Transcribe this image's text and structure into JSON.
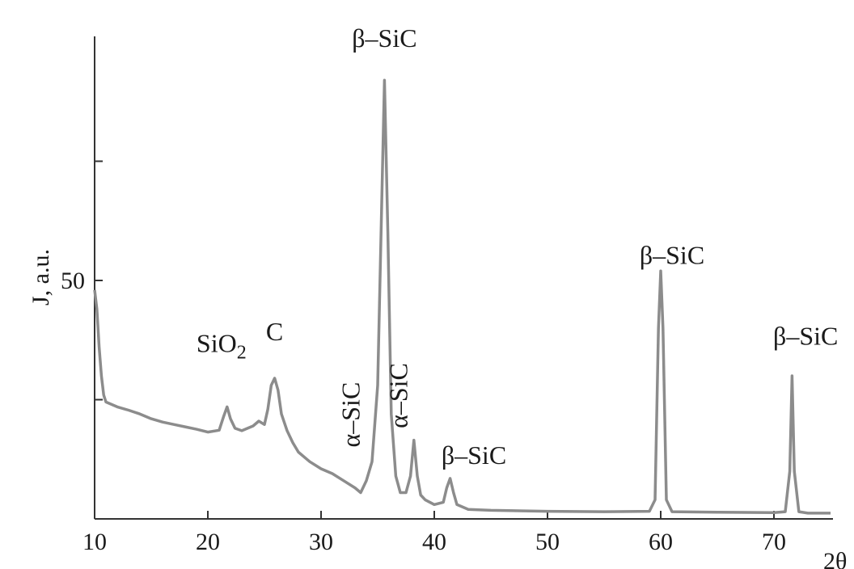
{
  "chart_data": {
    "type": "line",
    "title": "",
    "xlabel": "2θ",
    "ylabel": "J, a.u.",
    "xlim": [
      10,
      75
    ],
    "ylim": [
      0,
      100
    ],
    "x_ticks": [
      10,
      20,
      30,
      40,
      50,
      60,
      70
    ],
    "y_tick_labels": [
      {
        "value": 50,
        "label": "50"
      }
    ],
    "y_minor_ticks": [
      25,
      75
    ],
    "grid": false,
    "line_color": "#8c8c8c",
    "series": [
      {
        "x": [
          10.0,
          10.2,
          10.4,
          10.6,
          10.8,
          11.0,
          11.5,
          12.0,
          13.0,
          14.0,
          15.0,
          16.0,
          17.0,
          18.0,
          19.0,
          20.0,
          21.0,
          21.4,
          21.7,
          22.0,
          22.4,
          23.0,
          24.0,
          24.5,
          25.0,
          25.3,
          25.6,
          25.9,
          26.2,
          26.5,
          27.0,
          27.5,
          28.0,
          29.0,
          30.0,
          31.0,
          32.0,
          33.0,
          33.5,
          34.0,
          34.5,
          35.0,
          35.3,
          35.6,
          35.9,
          36.2,
          36.6,
          37.0,
          37.5,
          37.9,
          38.2,
          38.5,
          38.8,
          39.2,
          40.0,
          40.8,
          41.1,
          41.4,
          41.7,
          42.0,
          43.0,
          45.0,
          50.0,
          55.0,
          59.0,
          59.5,
          59.8,
          60.0,
          60.2,
          60.5,
          61.0,
          65.0,
          70.0,
          71.0,
          71.4,
          71.6,
          71.8,
          72.2,
          73.0,
          75.0
        ],
        "y": [
          48.0,
          44.0,
          36.0,
          30.0,
          26.0,
          24.5,
          24.0,
          23.5,
          22.8,
          22.0,
          21.0,
          20.3,
          19.8,
          19.3,
          18.8,
          18.2,
          18.6,
          21.5,
          23.5,
          21.0,
          19.0,
          18.5,
          19.5,
          20.5,
          19.8,
          23.0,
          28.0,
          29.5,
          27.0,
          22.0,
          18.5,
          16.0,
          14.0,
          12.0,
          10.5,
          9.5,
          8.0,
          6.5,
          5.5,
          8.0,
          12.0,
          28.0,
          60.0,
          92.0,
          60.0,
          22.0,
          9.0,
          5.5,
          5.5,
          9.0,
          16.5,
          9.0,
          5.0,
          4.0,
          3.0,
          3.5,
          6.5,
          8.5,
          5.5,
          3.0,
          2.0,
          1.8,
          1.6,
          1.5,
          1.6,
          4.0,
          40.0,
          52.0,
          40.0,
          4.0,
          1.5,
          1.4,
          1.3,
          1.5,
          10.0,
          30.0,
          10.0,
          1.5,
          1.2,
          1.2
        ]
      }
    ],
    "annotations": [
      {
        "text": "β–SiC",
        "x": 35.6,
        "y": 99,
        "vertical": false
      },
      {
        "text": "SiO",
        "sub": "2",
        "x": 21.2,
        "y": 35,
        "vertical": false
      },
      {
        "text": "C",
        "x": 25.9,
        "y": 37.5,
        "vertical": false
      },
      {
        "text": "α–SiC",
        "x": 33.4,
        "y": 15,
        "vertical": true
      },
      {
        "text": "α–SiC",
        "x": 37.6,
        "y": 19,
        "vertical": true
      },
      {
        "text": "β–SiC",
        "x": 43.5,
        "y": 11.5,
        "vertical": false
      },
      {
        "text": "β–SiC",
        "x": 61.0,
        "y": 53.5,
        "vertical": false
      },
      {
        "text": "β–SiC",
        "x": 72.8,
        "y": 36.5,
        "vertical": false
      }
    ]
  }
}
